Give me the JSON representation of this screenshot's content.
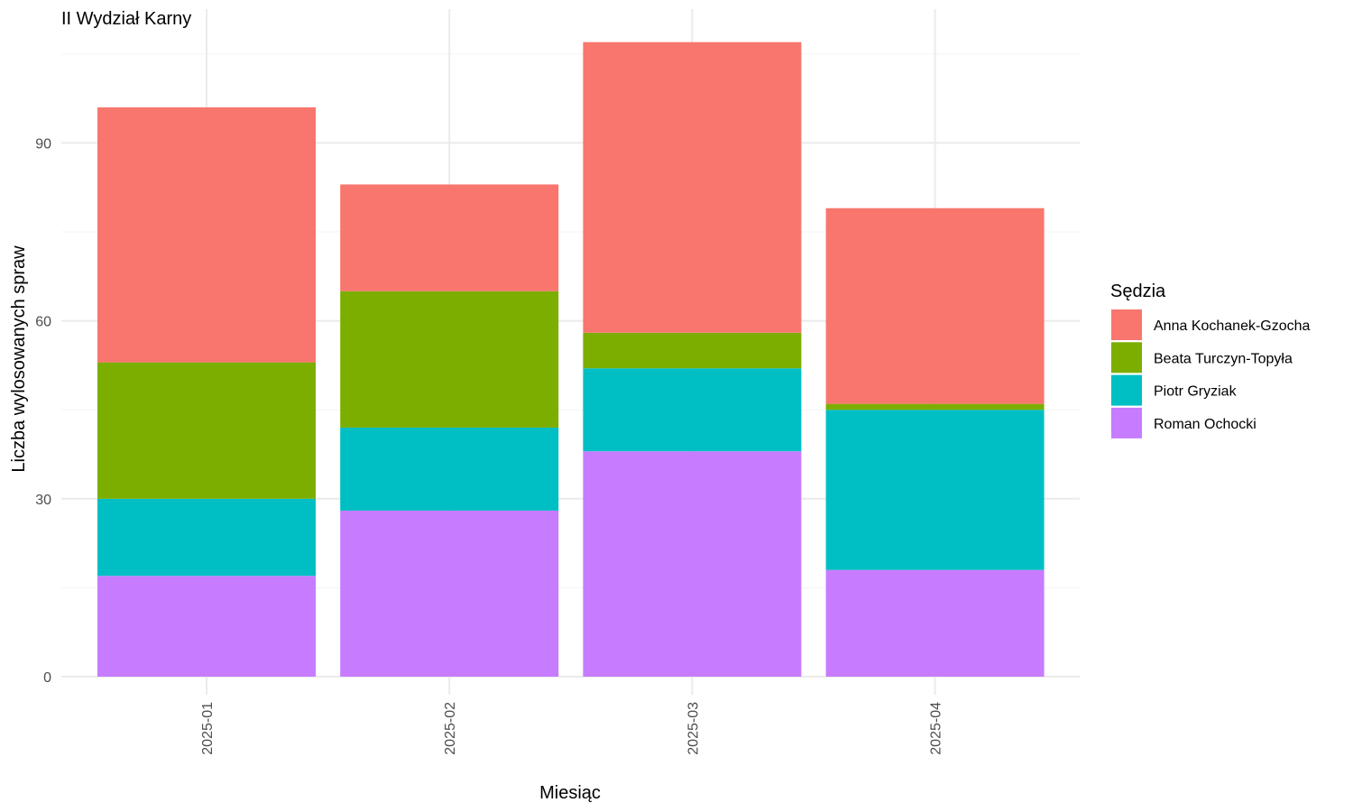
{
  "chart_data": {
    "type": "bar",
    "stacked": true,
    "title": "II Wydział Karny",
    "xlabel": "Miesiąc",
    "ylabel": "Liczba wylosowanych spraw",
    "categories": [
      "2025-01",
      "2025-02",
      "2025-03",
      "2025-04"
    ],
    "yticks": [
      0,
      30,
      60,
      90
    ],
    "ylim": [
      0,
      110
    ],
    "grid": true,
    "legend": {
      "title": "Sędzia",
      "position": "right"
    },
    "series": [
      {
        "name": "Roman Ochocki",
        "color": "#C77CFF",
        "values": [
          17,
          28,
          38,
          18
        ]
      },
      {
        "name": "Piotr Gryziak",
        "color": "#00BFC4",
        "values": [
          13,
          14,
          14,
          27
        ]
      },
      {
        "name": "Beata Turczyn-Topyła",
        "color": "#7CAE00",
        "values": [
          23,
          23,
          6,
          1
        ]
      },
      {
        "name": "Anna Kochanek-Gzocha",
        "color": "#F8766D",
        "values": [
          43,
          18,
          49,
          33
        ]
      }
    ],
    "legend_order": [
      "Anna Kochanek-Gzocha",
      "Beata Turczyn-Topyła",
      "Piotr Gryziak",
      "Roman Ochocki"
    ]
  }
}
